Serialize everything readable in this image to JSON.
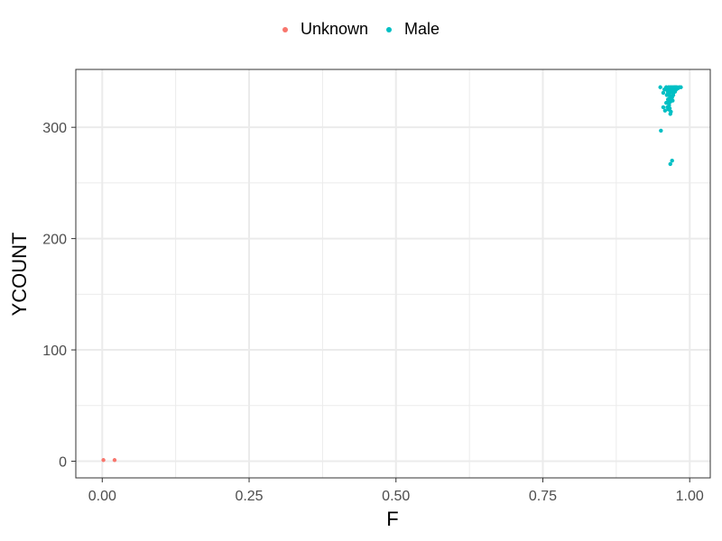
{
  "chart_data": {
    "type": "scatter",
    "xlabel": "F",
    "ylabel": "YCOUNT",
    "xlim": [
      -0.045,
      1.035
    ],
    "ylim": [
      -15,
      352
    ],
    "x_ticks": [
      0.0,
      0.25,
      0.5,
      0.75,
      1.0
    ],
    "x_tick_labels": [
      "0.00",
      "0.25",
      "0.50",
      "0.75",
      "1.00"
    ],
    "y_ticks": [
      0,
      100,
      200,
      300
    ],
    "y_tick_labels": [
      "0",
      "100",
      "200",
      "300"
    ],
    "grid": true,
    "legend_position": "top",
    "series": [
      {
        "name": "Unknown",
        "color": "#F8766D",
        "points": [
          [
            0.002,
            1
          ],
          [
            0.021,
            1
          ]
        ]
      },
      {
        "name": "Male",
        "color": "#00BFC4",
        "points": [
          [
            0.95,
            336
          ],
          [
            0.955,
            331
          ],
          [
            0.957,
            334
          ],
          [
            0.96,
            336
          ],
          [
            0.962,
            333
          ],
          [
            0.963,
            329
          ],
          [
            0.964,
            336
          ],
          [
            0.965,
            334
          ],
          [
            0.966,
            331
          ],
          [
            0.967,
            336
          ],
          [
            0.968,
            333
          ],
          [
            0.969,
            328
          ],
          [
            0.97,
            336
          ],
          [
            0.971,
            334
          ],
          [
            0.972,
            331
          ],
          [
            0.973,
            336
          ],
          [
            0.974,
            334
          ],
          [
            0.975,
            332
          ],
          [
            0.976,
            336
          ],
          [
            0.977,
            334
          ],
          [
            0.978,
            336
          ],
          [
            0.98,
            335
          ],
          [
            0.982,
            336
          ],
          [
            0.985,
            336
          ],
          [
            0.975,
            336
          ],
          [
            0.961,
            329
          ],
          [
            0.963,
            325
          ],
          [
            0.964,
            322
          ],
          [
            0.966,
            326
          ],
          [
            0.965,
            320
          ],
          [
            0.967,
            323
          ],
          [
            0.969,
            325
          ],
          [
            0.962,
            318
          ],
          [
            0.964,
            316
          ],
          [
            0.966,
            317
          ],
          [
            0.968,
            314
          ],
          [
            0.967,
            312
          ],
          [
            0.958,
            315
          ],
          [
            0.955,
            318
          ],
          [
            0.97,
            327
          ],
          [
            0.972,
            329
          ],
          [
            0.971,
            324
          ],
          [
            0.96,
            322
          ],
          [
            0.963,
            331
          ],
          [
            0.965,
            329
          ],
          [
            0.951,
            297
          ],
          [
            0.97,
            270
          ],
          [
            0.967,
            267
          ]
        ]
      }
    ]
  }
}
